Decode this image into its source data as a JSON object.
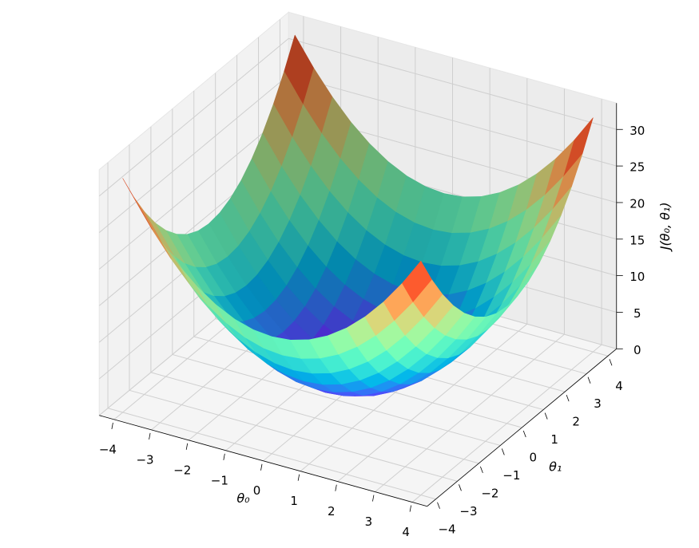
{
  "chart_data": {
    "type": "surface",
    "colormap": "rainbow",
    "grid": true,
    "x_label": "θ₀",
    "y_label": "θ₁",
    "z_label": "J(θ₀, θ₁)",
    "x": [
      -4,
      -3.5,
      -3,
      -2.5,
      -2,
      -1.5,
      -1,
      -0.5,
      0,
      0.5,
      1,
      1.5,
      2,
      2.5,
      3,
      3.5,
      4
    ],
    "y": [
      -4,
      -3.5,
      -3,
      -2.5,
      -2,
      -1.5,
      -1,
      -0.5,
      0,
      0.5,
      1,
      1.5,
      2,
      2.5,
      3,
      3.5,
      4
    ],
    "z": [
      [
        32,
        28.25,
        25,
        22.25,
        20,
        18.25,
        17,
        16.25,
        16,
        16.25,
        17,
        18.25,
        20,
        22.25,
        25,
        28.25,
        32
      ],
      [
        28.25,
        24.5,
        21.25,
        18.5,
        16.25,
        14.5,
        13.25,
        12.5,
        12.25,
        12.5,
        13.25,
        14.5,
        16.25,
        18.5,
        21.25,
        24.5,
        28.25
      ],
      [
        25,
        21.25,
        18,
        15.25,
        13,
        11.25,
        10,
        9.25,
        9,
        9.25,
        10,
        11.25,
        13,
        15.25,
        18,
        21.25,
        25
      ],
      [
        22.25,
        18.5,
        15.25,
        12.5,
        10.25,
        8.5,
        7.25,
        6.5,
        6.25,
        6.5,
        7.25,
        8.5,
        10.25,
        12.5,
        15.25,
        18.5,
        22.25
      ],
      [
        20,
        16.25,
        13,
        10.25,
        8,
        6.25,
        5,
        4.25,
        4,
        4.25,
        5,
        6.25,
        8,
        10.25,
        13,
        16.25,
        20
      ],
      [
        18.25,
        14.5,
        11.25,
        8.5,
        6.25,
        4.5,
        3.25,
        2.5,
        2.25,
        2.5,
        3.25,
        4.5,
        6.25,
        8.5,
        11.25,
        14.5,
        18.25
      ],
      [
        17,
        13.25,
        10,
        7.25,
        5,
        3.25,
        2,
        1.25,
        1,
        1.25,
        2,
        3.25,
        5,
        7.25,
        10,
        13.25,
        17
      ],
      [
        16.25,
        12.5,
        9.25,
        6.5,
        4.25,
        2.5,
        1.25,
        0.5,
        0.25,
        0.5,
        1.25,
        2.5,
        4.25,
        6.5,
        9.25,
        12.5,
        16.25
      ],
      [
        16,
        12.25,
        9,
        6.25,
        4,
        2.25,
        1,
        0.25,
        0,
        0.25,
        1,
        2.25,
        4,
        6.25,
        9,
        12.25,
        16
      ],
      [
        16.25,
        12.5,
        9.25,
        6.5,
        4.25,
        2.5,
        1.25,
        0.5,
        0.25,
        0.5,
        1.25,
        2.5,
        4.25,
        6.5,
        9.25,
        12.5,
        16.25
      ],
      [
        17,
        13.25,
        10,
        7.25,
        5,
        3.25,
        2,
        1.25,
        1,
        1.25,
        2,
        3.25,
        5,
        7.25,
        10,
        13.25,
        17
      ],
      [
        18.25,
        14.5,
        11.25,
        8.5,
        6.25,
        4.5,
        3.25,
        2.5,
        2.25,
        2.5,
        3.25,
        4.5,
        6.25,
        8.5,
        11.25,
        14.5,
        18.25
      ],
      [
        20,
        16.25,
        13,
        10.25,
        8,
        6.25,
        5,
        4.25,
        4,
        4.25,
        5,
        6.25,
        8,
        10.25,
        13,
        16.25,
        20
      ],
      [
        22.25,
        18.5,
        15.25,
        12.5,
        10.25,
        8.5,
        7.25,
        6.5,
        6.25,
        6.5,
        7.25,
        8.5,
        10.25,
        12.5,
        15.25,
        18.5,
        22.25
      ],
      [
        25,
        21.25,
        18,
        15.25,
        13,
        11.25,
        10,
        9.25,
        9,
        9.25,
        10,
        11.25,
        13,
        15.25,
        18,
        21.25,
        25
      ],
      [
        28.25,
        24.5,
        21.25,
        18.5,
        16.25,
        14.5,
        13.25,
        12.5,
        12.25,
        12.5,
        13.25,
        14.5,
        16.25,
        18.5,
        21.25,
        24.5,
        28.25
      ],
      [
        32,
        28.25,
        25,
        22.25,
        20,
        18.25,
        17,
        16.25,
        16,
        16.25,
        17,
        18.25,
        20,
        22.25,
        25,
        28.25,
        32
      ]
    ],
    "xlim": [
      -4.4,
      4.4
    ],
    "ylim": [
      -4.4,
      4.4
    ],
    "zlim": [
      0,
      33.6
    ],
    "xticks": [
      {
        "value": -4,
        "label": "−4"
      },
      {
        "value": -3,
        "label": "−3"
      },
      {
        "value": -2,
        "label": "−2"
      },
      {
        "value": -1,
        "label": "−1"
      },
      0,
      1,
      2,
      3,
      4
    ],
    "yticks": [
      {
        "value": -4,
        "label": "−4"
      },
      {
        "value": -3,
        "label": "−3"
      },
      {
        "value": -2,
        "label": "−2"
      },
      {
        "value": -1,
        "label": "−1"
      },
      0,
      1,
      2,
      3,
      4
    ],
    "zticks": [
      0,
      5,
      10,
      15,
      20,
      25,
      30
    ]
  }
}
